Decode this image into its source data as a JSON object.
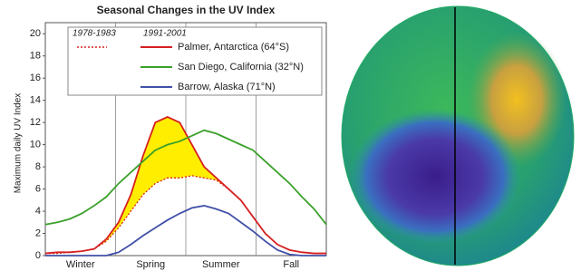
{
  "chart_data": {
    "type": "line",
    "title": "Seasonal Changes in the UV Index",
    "y_label": "Maximum daily UV Index",
    "seasons": [
      "Winter",
      "Spring",
      "Summer",
      "Fall"
    ],
    "period_headers": [
      "1978-1983",
      "1991-2001"
    ],
    "ylim": [
      0,
      21
    ],
    "yticks": [
      0,
      2,
      4,
      6,
      8,
      10,
      12,
      14,
      16,
      18,
      20
    ],
    "reference": {
      "color": "#d62020",
      "fill": "#ffee00",
      "values": [
        0.2,
        0.2,
        0.3,
        0.4,
        0.6,
        1.3,
        2.5,
        4,
        5.5,
        6.5,
        7,
        7,
        7.2,
        7,
        6.8,
        6,
        5,
        3.5,
        2,
        1,
        0.5,
        0.3,
        0.2,
        0.2
      ]
    },
    "series": [
      {
        "name": "Palmer, Antarctica (64°S)",
        "color": "#d62020",
        "values": [
          0.2,
          0.3,
          0.3,
          0.4,
          0.6,
          1.5,
          3,
          5.5,
          9,
          12,
          12.5,
          12,
          10,
          8,
          7,
          6,
          5,
          3.5,
          2,
          1,
          0.5,
          0.3,
          0.2,
          0.2
        ]
      },
      {
        "name": "San Diego, California (32°N)",
        "color": "#3aa02a",
        "values": [
          2.8,
          3,
          3.3,
          3.8,
          4.5,
          5.3,
          6.5,
          7.5,
          8.5,
          9.5,
          10,
          10.3,
          10.8,
          11.3,
          11,
          10.5,
          10,
          9.5,
          8.5,
          7.5,
          6.5,
          5.3,
          4.2,
          2.8
        ]
      },
      {
        "name": "Barrow, Alaska (71°N)",
        "color": "#4050a8",
        "values": [
          0,
          0,
          0,
          0,
          0,
          0,
          0.3,
          1,
          1.8,
          2.5,
          3.2,
          3.8,
          4.3,
          4.5,
          4.2,
          3.8,
          3,
          2.2,
          1.3,
          0.5,
          0.1,
          0,
          0,
          0
        ]
      }
    ]
  }
}
